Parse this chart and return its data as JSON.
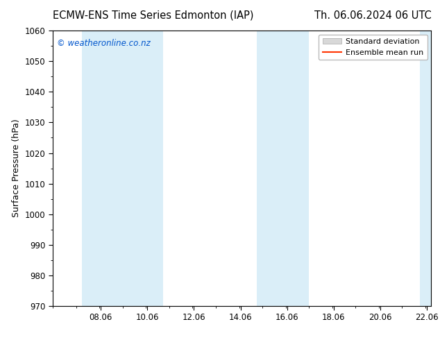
{
  "title_left": "ECMW-ENS Time Series Edmonton (IAP)",
  "title_right": "Th. 06.06.2024 06 UTC",
  "ylabel": "Surface Pressure (hPa)",
  "xlim": [
    6.0,
    22.25
  ],
  "ylim": [
    970,
    1060
  ],
  "yticks": [
    970,
    980,
    990,
    1000,
    1010,
    1020,
    1030,
    1040,
    1050,
    1060
  ],
  "xtick_labels": [
    "08.06",
    "10.06",
    "12.06",
    "14.06",
    "16.06",
    "18.06",
    "20.06",
    "22.06"
  ],
  "xtick_positions": [
    8.06,
    10.06,
    12.06,
    14.06,
    16.06,
    18.06,
    20.06,
    22.06
  ],
  "shaded_bands": [
    {
      "x_start": 7.25,
      "x_end": 9.5
    },
    {
      "x_start": 9.5,
      "x_end": 10.75
    },
    {
      "x_start": 14.75,
      "x_end": 16.0
    },
    {
      "x_start": 16.0,
      "x_end": 17.0
    },
    {
      "x_start": 21.75,
      "x_end": 22.25
    }
  ],
  "band_color": "#daeef8",
  "watermark": "© weatheronline.co.nz",
  "watermark_color": "#0055cc",
  "legend_items": [
    "Standard deviation",
    "Ensemble mean run"
  ],
  "legend_patch_color": "#d8d8d8",
  "legend_line_color": "#ff3300",
  "background_color": "#ffffff",
  "title_fontsize": 10.5,
  "axis_label_fontsize": 9,
  "tick_fontsize": 8.5
}
